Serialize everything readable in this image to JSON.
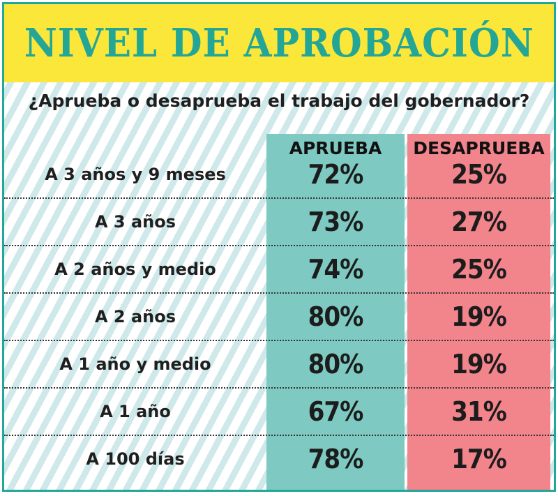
{
  "title": "NIVEL DE APROBACIÓN",
  "question": "¿Aprueba o desaprueba el trabajo del gobernador?",
  "colors": {
    "border": "#23a79a",
    "title_band": "#fae73a",
    "title_text": "#24a696",
    "stripe": "#cfe9ea",
    "approve_column": "#7ecac2",
    "disapprove_column": "#f2848c"
  },
  "chart_data": {
    "type": "table",
    "columns": [
      "APRUEBA",
      "DESAPRUEBA"
    ],
    "rows": [
      {
        "label": "A 3 años y 9 meses",
        "approve": "72%",
        "disapprove": "25%"
      },
      {
        "label": "A 3 años",
        "approve": "73%",
        "disapprove": "27%"
      },
      {
        "label": "A 2 años y medio",
        "approve": "74%",
        "disapprove": "25%"
      },
      {
        "label": "A 2 años",
        "approve": "80%",
        "disapprove": "19%"
      },
      {
        "label": "A 1 año y medio",
        "approve": "80%",
        "disapprove": "19%"
      },
      {
        "label": "A 1 año",
        "approve": "67%",
        "disapprove": "31%"
      },
      {
        "label": "A 100 días",
        "approve": "78%",
        "disapprove": "17%"
      }
    ]
  }
}
